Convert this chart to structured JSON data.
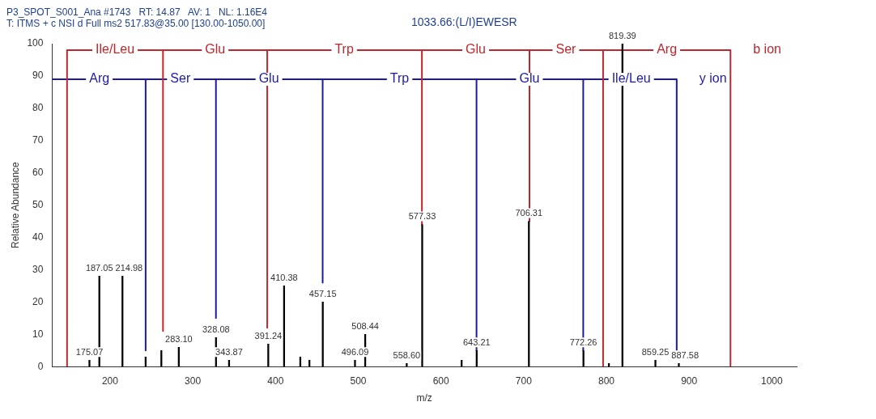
{
  "chart_data": {
    "type": "bar",
    "title": "P3_SPOT_S001_Ana #1743   RT: 14.87   AV: 1   NL: 1.16E4",
    "subtitle": "T: ITMS + c NSI d Full ms2 517.83@35.00 [130.00-1050.00]",
    "xlabel": "m/z",
    "ylabel": "Relative Abundance",
    "xlim": [
      130,
      1030
    ],
    "xticks": [
      200,
      300,
      400,
      500,
      600,
      700,
      800,
      900,
      1000
    ],
    "ylim": [
      0,
      100
    ],
    "yticks": [
      0,
      10,
      20,
      30,
      40,
      50,
      60,
      70,
      80,
      90,
      100
    ],
    "grid": false,
    "legend": false,
    "series": [
      {
        "color": "#000000",
        "x": [
          175.07,
          187.05,
          214.98,
          243,
          262,
          283.1,
          328.08,
          343.87,
          391.24,
          410.38,
          430,
          441,
          457.15,
          496.09,
          508.44,
          558.6,
          577.33,
          625,
          643.21,
          706.31,
          772.26,
          803,
          819.39,
          859.25,
          887.58
        ],
        "values": [
          2,
          28,
          28,
          3,
          5,
          6,
          9,
          2,
          7,
          25,
          3,
          2,
          20,
          2,
          10,
          1,
          44,
          2,
          5,
          45,
          5,
          1,
          100,
          2,
          1
        ]
      },
      {
        "type": "line",
        "name": "b ion",
        "color": "#c0262d",
        "marker": "none",
        "line_style": "solid",
        "x": [
          148,
          148,
          264,
          264,
          264,
          390,
          390,
          390,
          577,
          577,
          577,
          707,
          707,
          707,
          796,
          796,
          796,
          950,
          950
        ],
        "values": [
          0,
          98,
          98,
          11,
          98,
          98,
          12,
          98,
          98,
          44,
          98,
          98,
          45,
          98,
          98,
          0,
          98,
          98,
          0
        ]
      },
      {
        "type": "line",
        "name": "y ion",
        "color": "#1a1aa6",
        "marker": "none",
        "line_style": "solid",
        "x": [
          130,
          243,
          243,
          243,
          328,
          328,
          328,
          457,
          457,
          457,
          643,
          643,
          643,
          772,
          772,
          772,
          885,
          885
        ],
        "values": [
          89,
          89,
          5,
          89,
          89,
          15,
          89,
          89,
          26,
          89,
          89,
          5,
          89,
          89,
          5,
          89,
          89,
          5
        ]
      }
    ],
    "annotations": [
      "1033.66:(L/I)EWESR",
      {
        "text": "175.07",
        "x": 175.07,
        "y": 2
      },
      {
        "text": "187.05",
        "x": 187.05,
        "y": 28
      },
      {
        "text": "214.98",
        "x": 214.98,
        "y": 28
      },
      {
        "text": "283.10",
        "x": 283.1,
        "y": 6
      },
      {
        "text": "328.08",
        "x": 328.08,
        "y": 9
      },
      {
        "text": "343.87",
        "x": 343.87,
        "y": 2
      },
      {
        "text": "391.24",
        "x": 391.24,
        "y": 7
      },
      {
        "text": "410.38",
        "x": 410.38,
        "y": 25
      },
      {
        "text": "457.15",
        "x": 457.15,
        "y": 20
      },
      {
        "text": "496.09",
        "x": 496.09,
        "y": 2
      },
      {
        "text": "508.44",
        "x": 508.44,
        "y": 10
      },
      {
        "text": "558.60",
        "x": 558.6,
        "y": 1
      },
      {
        "text": "577.33",
        "x": 577.33,
        "y": 44
      },
      {
        "text": "643.21",
        "x": 643.21,
        "y": 5
      },
      {
        "text": "706.31",
        "x": 706.31,
        "y": 45
      },
      {
        "text": "772.26",
        "x": 772.26,
        "y": 5
      },
      {
        "text": "819.39",
        "x": 819.39,
        "y": 100
      },
      {
        "text": "859.25",
        "x": 859.25,
        "y": 2
      },
      {
        "text": "887.58",
        "x": 887.58,
        "y": 1
      },
      {
        "text": "Ile/Leu",
        "x": 206,
        "y": 98
      },
      {
        "text": "Glu",
        "x": 327,
        "y": 98
      },
      {
        "text": "Trp",
        "x": 483,
        "y": 98
      },
      {
        "text": "Glu",
        "x": 642,
        "y": 98
      },
      {
        "text": "Ser",
        "x": 751,
        "y": 98
      },
      {
        "text": "Arg",
        "x": 873,
        "y": 98
      },
      {
        "text": "Arg",
        "x": 187,
        "y": 89
      },
      {
        "text": "Ser",
        "x": 285,
        "y": 89
      },
      {
        "text": "Glu",
        "x": 392,
        "y": 89
      },
      {
        "text": "Trp",
        "x": 550,
        "y": 89
      },
      {
        "text": "Glu",
        "x": 707,
        "y": 89
      },
      {
        "text": "Ile/Leu",
        "x": 830,
        "y": 89
      }
    ]
  }
}
